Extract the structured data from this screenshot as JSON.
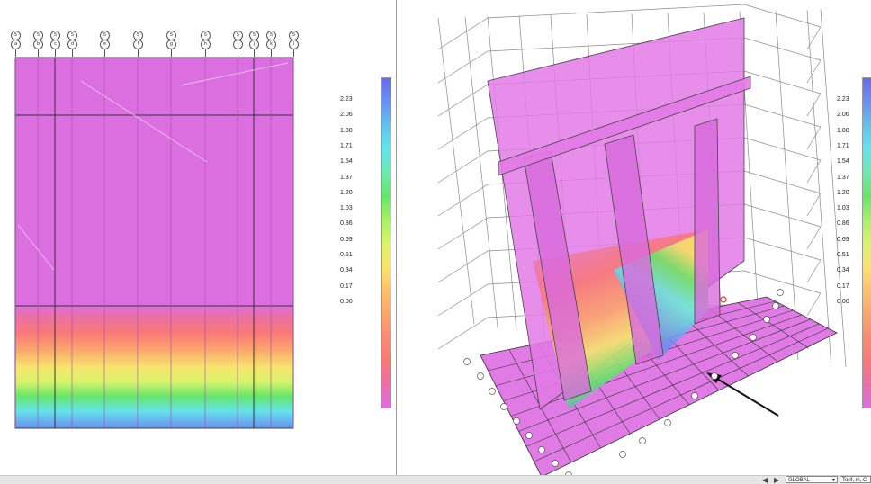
{
  "left_view": {
    "grid_bubbles": [
      {
        "num": "5",
        "letter": "a"
      },
      {
        "num": "5",
        "letter": "b"
      },
      {
        "num": "5",
        "letter": "c"
      },
      {
        "num": "5",
        "letter": "d"
      },
      {
        "num": "5",
        "letter": "e"
      },
      {
        "num": "5",
        "letter": "f"
      },
      {
        "num": "5",
        "letter": "g"
      },
      {
        "num": "5",
        "letter": "h"
      },
      {
        "num": "5",
        "letter": "i"
      },
      {
        "num": "5",
        "letter": "j"
      },
      {
        "num": "5",
        "letter": "k"
      },
      {
        "num": "5",
        "letter": "l"
      }
    ],
    "legend_values": [
      "2.23",
      "2.06",
      "1.88",
      "1.71",
      "1.54",
      "1.37",
      "1.20",
      "1.03",
      "0.86",
      "0.69",
      "0.51",
      "0.34",
      "0.17",
      "0.00"
    ]
  },
  "right_view": {
    "legend_values": [
      "2.23",
      "2.06",
      "1.88",
      "1.71",
      "1.54",
      "1.37",
      "1.20",
      "1.03",
      "0.86",
      "0.69",
      "0.51",
      "0.34",
      "0.17",
      "0.00"
    ]
  },
  "colors": {
    "slab": "#dc6fe0",
    "wall": "#e27ae6",
    "grid_line": "#8a8a8a"
  },
  "status_bar": {
    "coord_system": "GLOBAL",
    "units": "Tonf, m, C"
  }
}
